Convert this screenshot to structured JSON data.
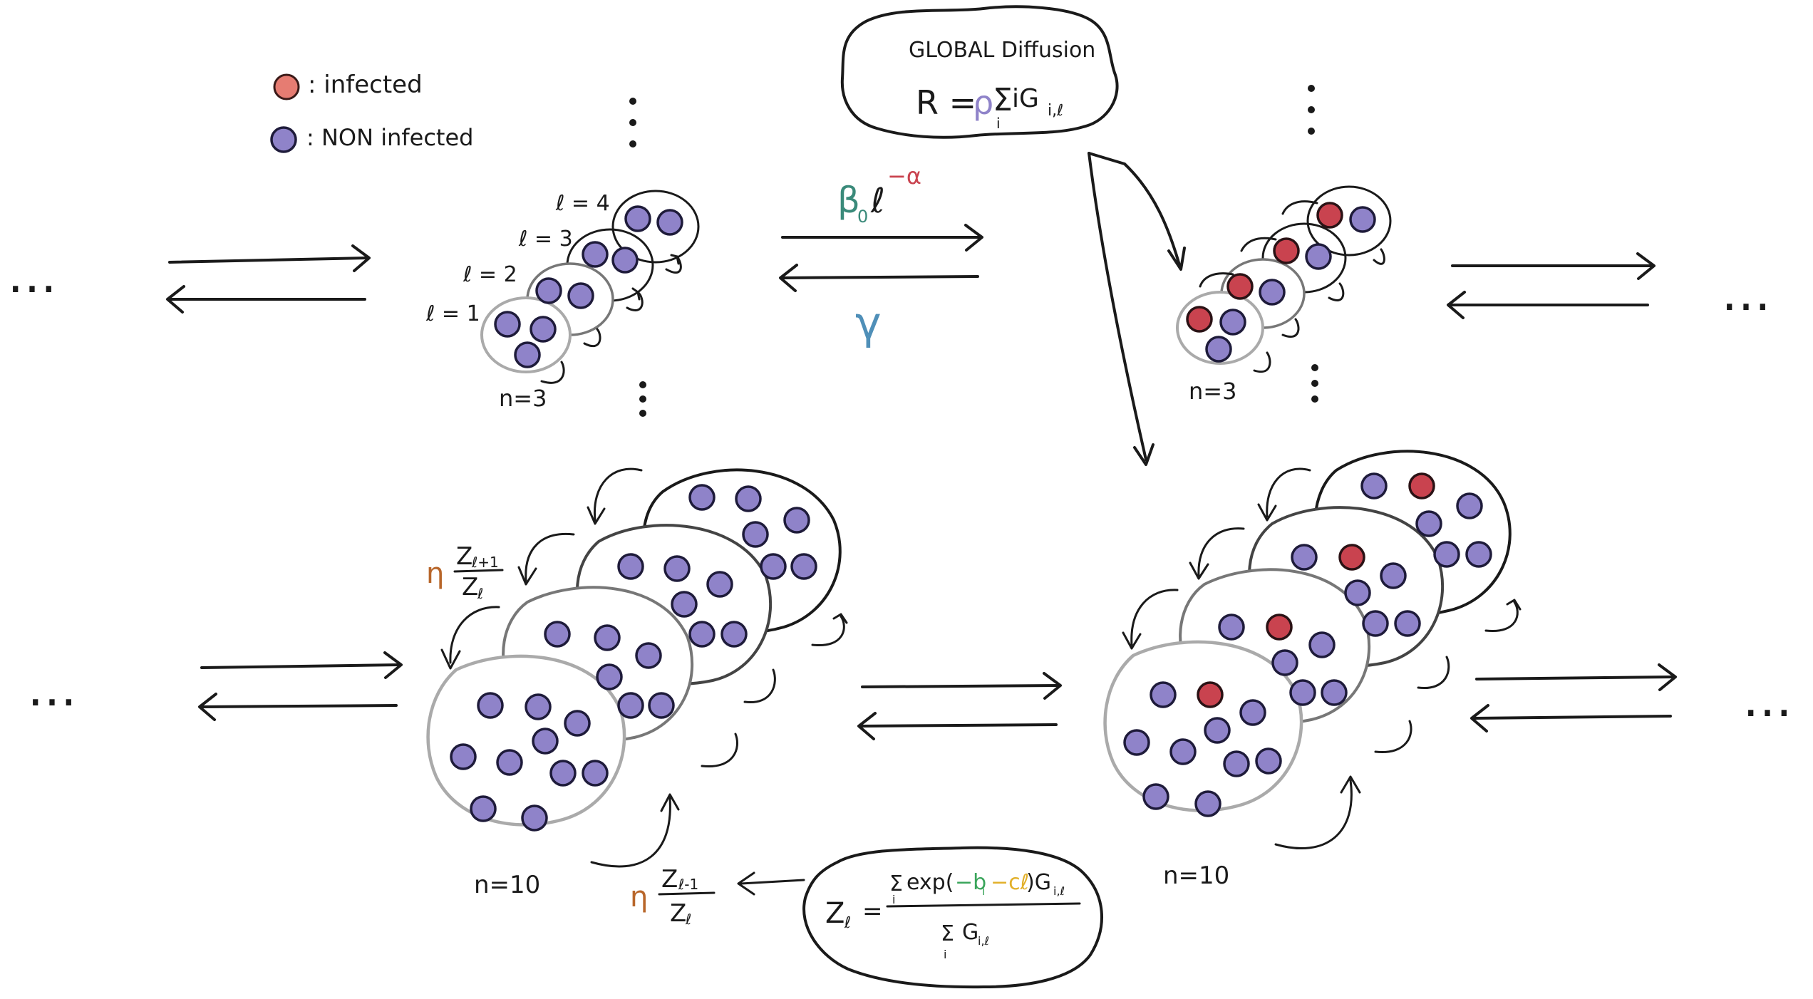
{
  "legend": {
    "infected_label": ": infected",
    "non_infected_label": ": NON infected",
    "infected_color": "#e67c72",
    "non_infected_color": "#8f83c9"
  },
  "global_diffusion": {
    "title": "GLOBAL Diffusion",
    "formula_lhs": "R =",
    "formula_rho": "ρ",
    "formula_sum": "Σ",
    "formula_sub": "i",
    "formula_rest": "iG",
    "formula_idx": "i,ℓ"
  },
  "rates": {
    "infection_beta": "β",
    "infection_sub": "0",
    "infection_l": "ℓ",
    "infection_exp": "−α",
    "recovery": "γ"
  },
  "small_cluster": {
    "levels": [
      "ℓ = 1",
      "ℓ = 2",
      "ℓ = 3",
      "ℓ = 4"
    ],
    "size_label": "n=3"
  },
  "large_cluster": {
    "size_label": "n=10",
    "up_rate_eta": "η",
    "up_rate_num": "Z",
    "up_rate_num_sub": "ℓ+1",
    "up_rate_den": "Z",
    "up_rate_den_sub": "ℓ",
    "down_rate_eta": "η",
    "down_rate_num": "Z",
    "down_rate_num_sub": "ℓ-1",
    "down_rate_den": "Z",
    "down_rate_den_sub": "ℓ"
  },
  "z_formula": {
    "lhs": "Z",
    "lhs_sub": "ℓ",
    "eq": "=",
    "num_sum": "Σ",
    "num_sum_sub": "i",
    "num_exp": "exp(",
    "num_b": "−b",
    "num_b_sub": "i",
    "num_c": "−cℓ",
    "num_close": ")G",
    "num_g_sub": "i,ℓ",
    "den_sum": "Σ",
    "den_sum_sub": "i",
    "den_g": "G",
    "den_g_sub": "i,ℓ",
    "color_b": "#3aa55b",
    "color_c": "#e2b02a"
  },
  "ellipsis": "…"
}
